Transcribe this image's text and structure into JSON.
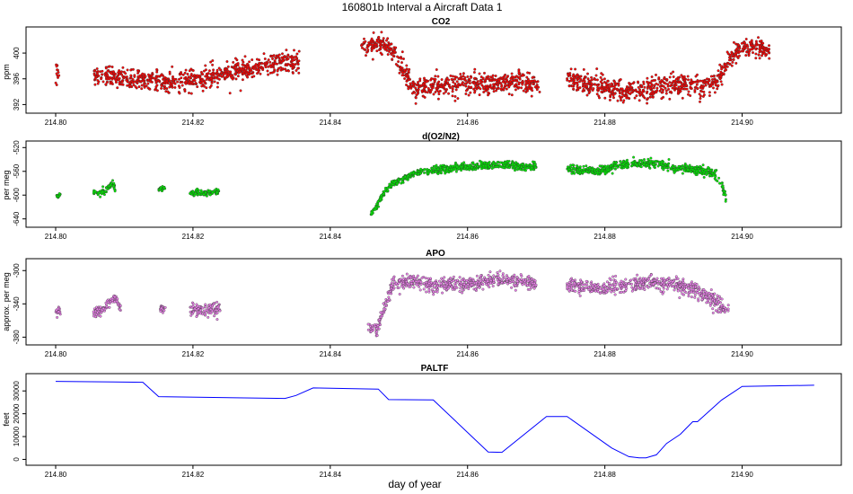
{
  "figure": {
    "title": "160801b   Interval a Aircraft Data 1",
    "xlabel": "day of year"
  },
  "chart_data": [
    {
      "type": "scatter",
      "title": "CO2",
      "ylabel": "ppm",
      "xlim": [
        214.8,
        214.91
      ],
      "ylim": [
        391.5,
        403.5
      ],
      "x_ticks": [
        "214.80",
        "214.82",
        "214.84",
        "214.86",
        "214.88",
        "214.90"
      ],
      "y_ticks": [
        "392",
        "396",
        "400"
      ],
      "color": "#ff0000",
      "segments": [
        {
          "x0": 214.8,
          "x1": 214.8005,
          "points": [
            [
              214.8,
              397.3
            ],
            [
              214.8005,
              397.0
            ]
          ],
          "noise": 0.7
        },
        {
          "x0": 214.8055,
          "x1": 214.8355,
          "points": [
            [
              214.8055,
              396.5
            ],
            [
              214.812,
              396.0
            ],
            [
              214.818,
              395.6
            ],
            [
              214.822,
              396.2
            ],
            [
              214.826,
              397.3
            ],
            [
              214.829,
              397.6
            ],
            [
              214.832,
              398.5
            ],
            [
              214.8355,
              398.6
            ]
          ],
          "noise": 0.8
        },
        {
          "x0": 214.8445,
          "x1": 214.8495,
          "points": [
            [
              214.8445,
              401.0
            ],
            [
              214.847,
              401.5
            ],
            [
              214.8485,
              401.0
            ],
            [
              214.8495,
              400.0
            ]
          ],
          "noise": 0.6
        },
        {
          "x0": 214.8495,
          "x1": 214.8705,
          "points": [
            [
              214.8495,
              399.5
            ],
            [
              214.851,
              396.5
            ],
            [
              214.852,
              394.5
            ],
            [
              214.856,
              395.0
            ],
            [
              214.862,
              395.2
            ],
            [
              214.867,
              395.4
            ],
            [
              214.8705,
              395.4
            ]
          ],
          "noise": 0.8
        },
        {
          "x0": 214.8745,
          "x1": 214.8965,
          "points": [
            [
              214.8745,
              395.8
            ],
            [
              214.878,
              395.2
            ],
            [
              214.882,
              394.2
            ],
            [
              214.886,
              394.3
            ],
            [
              214.89,
              395.2
            ],
            [
              214.894,
              395.0
            ],
            [
              214.8965,
              395.5
            ]
          ],
          "noise": 0.8
        },
        {
          "x0": 214.8965,
          "x1": 214.904,
          "points": [
            [
              214.8965,
              396.0
            ],
            [
              214.898,
              399.0
            ],
            [
              214.9,
              401.0
            ],
            [
              214.902,
              400.8
            ],
            [
              214.904,
              400.5
            ]
          ],
          "noise": 0.7
        }
      ]
    },
    {
      "type": "scatter",
      "title": "d(O2/N2)",
      "ylabel": "per meg",
      "xlim": [
        214.8,
        214.91
      ],
      "ylim": [
        -645,
        -515
      ],
      "x_ticks": [
        "214.80",
        "214.82",
        "214.84",
        "214.86",
        "214.88",
        "214.90"
      ],
      "y_ticks": [
        "-640",
        "-600",
        "-560",
        "-520"
      ],
      "color": "#00ee00",
      "segments": [
        {
          "x0": 214.8,
          "x1": 214.8007,
          "points": [
            [
              214.8,
              -602
            ],
            [
              214.8007,
              -600
            ]
          ],
          "noise": 2
        },
        {
          "x0": 214.8055,
          "x1": 214.8087,
          "points": [
            [
              214.8055,
              -597
            ],
            [
              214.807,
              -595
            ],
            [
              214.8083,
              -578
            ],
            [
              214.8087,
              -592
            ]
          ],
          "noise": 2.5
        },
        {
          "x0": 214.815,
          "x1": 214.816,
          "points": [
            [
              214.815,
              -590
            ],
            [
              214.816,
              -590
            ]
          ],
          "noise": 2
        },
        {
          "x0": 214.8195,
          "x1": 214.824,
          "points": [
            [
              214.8195,
              -596
            ],
            [
              214.822,
              -597
            ],
            [
              214.824,
              -594
            ]
          ],
          "noise": 2.5
        },
        {
          "x0": 214.8458,
          "x1": 214.87,
          "points": [
            [
              214.8458,
              -635
            ],
            [
              214.8465,
              -622
            ],
            [
              214.8475,
              -602
            ],
            [
              214.849,
              -582
            ],
            [
              214.852,
              -565
            ],
            [
              214.856,
              -556
            ],
            [
              214.86,
              -553
            ],
            [
              214.864,
              -549
            ],
            [
              214.8665,
              -548
            ],
            [
              214.8675,
              -552
            ],
            [
              214.87,
              -552
            ]
          ],
          "noise": 3
        },
        {
          "x0": 214.8745,
          "x1": 214.8978,
          "points": [
            [
              214.8745,
              -557
            ],
            [
              214.879,
              -560
            ],
            [
              214.882,
              -549
            ],
            [
              214.8855,
              -546
            ],
            [
              214.888,
              -548
            ],
            [
              214.89,
              -555
            ],
            [
              214.893,
              -556
            ],
            [
              214.8955,
              -562
            ],
            [
              214.8965,
              -572
            ],
            [
              214.8975,
              -595
            ],
            [
              214.8978,
              -625
            ]
          ],
          "noise": 3.5
        }
      ]
    },
    {
      "type": "scatter",
      "title": "APO",
      "ylabel": "approx. per meg",
      "xlim": [
        214.8,
        214.91
      ],
      "ylim": [
        -385,
        -290
      ],
      "x_ticks": [
        "214.80",
        "214.82",
        "214.84",
        "214.86",
        "214.88",
        "214.90"
      ],
      "y_ticks": [
        "-380",
        "-340",
        "-300"
      ],
      "color": "#ee82ee",
      "segments": [
        {
          "x0": 214.8,
          "x1": 214.8007,
          "points": [
            [
              214.8,
              -350
            ],
            [
              214.8007,
              -348
            ]
          ],
          "noise": 2.5
        },
        {
          "x0": 214.8055,
          "x1": 214.8095,
          "points": [
            [
              214.8055,
              -350
            ],
            [
              214.807,
              -347
            ],
            [
              214.8085,
              -332
            ],
            [
              214.8095,
              -345
            ]
          ],
          "noise": 3
        },
        {
          "x0": 214.815,
          "x1": 214.816,
          "points": [
            [
              214.815,
              -346
            ],
            [
              214.816,
              -346
            ]
          ],
          "noise": 2
        },
        {
          "x0": 214.8195,
          "x1": 214.824,
          "points": [
            [
              214.8195,
              -348
            ],
            [
              214.822,
              -347
            ],
            [
              214.824,
              -346
            ]
          ],
          "noise": 4
        },
        {
          "x0": 214.8455,
          "x1": 214.87,
          "points": [
            [
              214.8455,
              -368
            ],
            [
              214.8468,
              -372
            ],
            [
              214.8478,
              -346
            ],
            [
              214.849,
              -318
            ],
            [
              214.851,
              -312
            ],
            [
              214.855,
              -318
            ],
            [
              214.86,
              -316
            ],
            [
              214.864,
              -312
            ],
            [
              214.867,
              -314
            ],
            [
              214.87,
              -315
            ]
          ],
          "noise": 4
        },
        {
          "x0": 214.8745,
          "x1": 214.898,
          "points": [
            [
              214.8745,
              -318
            ],
            [
              214.879,
              -322
            ],
            [
              214.883,
              -317
            ],
            [
              214.887,
              -314
            ],
            [
              214.891,
              -318
            ],
            [
              214.894,
              -327
            ],
            [
              214.8965,
              -340
            ],
            [
              214.898,
              -348
            ]
          ],
          "noise": 4.5
        }
      ]
    },
    {
      "type": "line",
      "title": "PALTF",
      "ylabel": "feet",
      "xlim": [
        214.8,
        214.91
      ],
      "ylim": [
        -1000,
        36000
      ],
      "x_ticks": [
        "214.80",
        "214.82",
        "214.84",
        "214.86",
        "214.88",
        "214.90"
      ],
      "y_ticks": [
        "0",
        "10000",
        "20000",
        "30000"
      ],
      "color": "#0000ff",
      "x": [
        214.8,
        214.8127,
        214.815,
        214.8334,
        214.835,
        214.8375,
        214.847,
        214.8485,
        214.855,
        214.863,
        214.865,
        214.8715,
        214.8745,
        214.881,
        214.8835,
        214.885,
        214.886,
        214.8875,
        214.889,
        214.891,
        214.8928,
        214.8935,
        214.897,
        214.9,
        214.9105
      ],
      "y": [
        34200,
        33800,
        27500,
        26700,
        28000,
        31300,
        30800,
        26200,
        26100,
        3200,
        3100,
        18800,
        18800,
        5000,
        1200,
        700,
        700,
        2000,
        7000,
        11000,
        16500,
        16500,
        26000,
        32000,
        32500
      ]
    }
  ]
}
